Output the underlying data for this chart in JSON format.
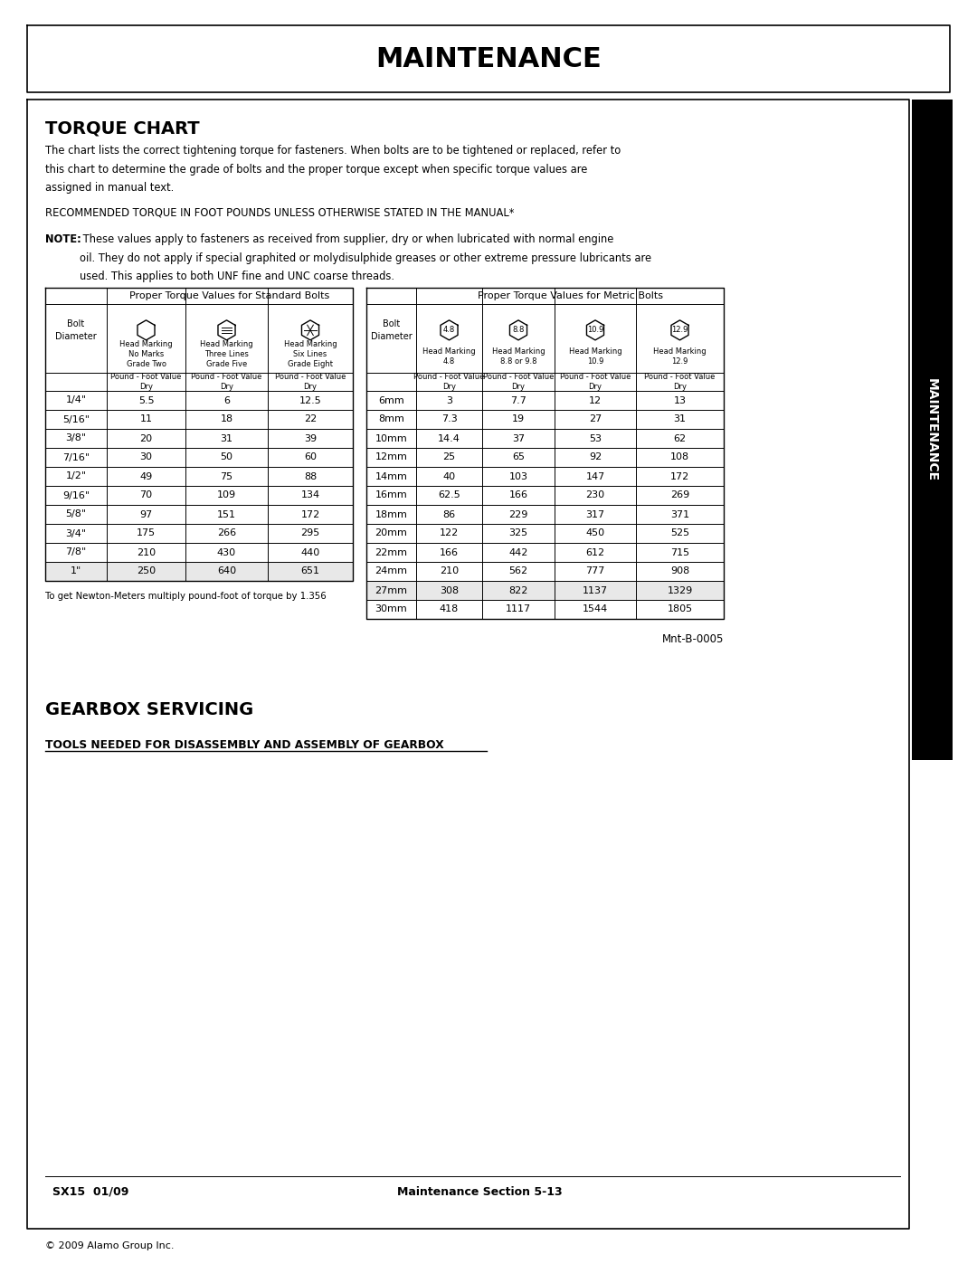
{
  "page_title": "MAINTENANCE",
  "section1_title": "TORQUE CHART",
  "intro_line1": "The chart lists the correct tightening torque for fasteners. When bolts are to be tightened or replaced, refer to",
  "intro_line2": "this chart to determine the grade of bolts and the proper torque except when specific torque values are",
  "intro_line3": "assigned in manual text.",
  "recommended_text": "RECOMMENDED TORQUE IN FOOT POUNDS UNLESS OTHERWISE STATED IN THE MANUAL*",
  "note_bold": "NOTE:",
  "note_rest": " These values apply to fasteners as received from supplier, dry or when lubricated with normal engine\noil. They do not apply if special graphited or molydisulphide greases or other extreme pressure lubricants are\nused. This applies to both UNF fine and UNC coarse threads.",
  "std_table_title": "Proper Torque Values for Standard Bolts",
  "metric_table_title": "Proper Torque Values for Metric Bolts",
  "metric_grades": [
    "4.8",
    "8.8",
    "10.9",
    "12.9"
  ],
  "std_data": [
    [
      "1/4\"",
      "5.5",
      "6",
      "12.5"
    ],
    [
      "5/16\"",
      "11",
      "18",
      "22"
    ],
    [
      "3/8\"",
      "20",
      "31",
      "39"
    ],
    [
      "7/16\"",
      "30",
      "50",
      "60"
    ],
    [
      "1/2\"",
      "49",
      "75",
      "88"
    ],
    [
      "9/16\"",
      "70",
      "109",
      "134"
    ],
    [
      "5/8\"",
      "97",
      "151",
      "172"
    ],
    [
      "3/4\"",
      "175",
      "266",
      "295"
    ],
    [
      "7/8\"",
      "210",
      "430",
      "440"
    ],
    [
      "1\"",
      "250",
      "640",
      "651"
    ]
  ],
  "metric_data": [
    [
      "6mm",
      "3",
      "7.7",
      "12",
      "13"
    ],
    [
      "8mm",
      "7.3",
      "19",
      "27",
      "31"
    ],
    [
      "10mm",
      "14.4",
      "37",
      "53",
      "62"
    ],
    [
      "12mm",
      "25",
      "65",
      "92",
      "108"
    ],
    [
      "14mm",
      "40",
      "103",
      "147",
      "172"
    ],
    [
      "16mm",
      "62.5",
      "166",
      "230",
      "269"
    ],
    [
      "18mm",
      "86",
      "229",
      "317",
      "371"
    ],
    [
      "20mm",
      "122",
      "325",
      "450",
      "525"
    ],
    [
      "22mm",
      "166",
      "442",
      "612",
      "715"
    ],
    [
      "24mm",
      "210",
      "562",
      "777",
      "908"
    ],
    [
      "27mm",
      "308",
      "822",
      "1137",
      "1329"
    ],
    [
      "30mm",
      "418",
      "1117",
      "1544",
      "1805"
    ]
  ],
  "newton_note": "To get Newton-Meters multiply pound-foot of torque by 1.356",
  "doc_ref": "Mnt-B-0005",
  "section2_title": "GEARBOX SERVICING",
  "section2_sub": "TOOLS NEEDED FOR DISASSEMBLY AND ASSEMBLY OF GEARBOX",
  "footer_left": "SX15  01/09",
  "footer_center": "Maintenance Section 5-13",
  "copyright": "© 2009 Alamo Group Inc.",
  "sidebar_text": "MAINTENANCE",
  "std_col_labels": [
    "Head Marking\nNo Marks\nGrade Two",
    "Head Marking\nThree Lines\nGrade Five",
    "Head Marking\nSix Lines\nGrade Eight"
  ],
  "met_col_labels": [
    "Head Marking\n4.8",
    "Head Marking\n8.8 or 9.8",
    "Head Marking\n10.9",
    "Head Marking\n12.9"
  ],
  "pound_foot_dry": "Pound - Foot Value\nDry",
  "bolt_diameter": "Bolt\nDiameter"
}
